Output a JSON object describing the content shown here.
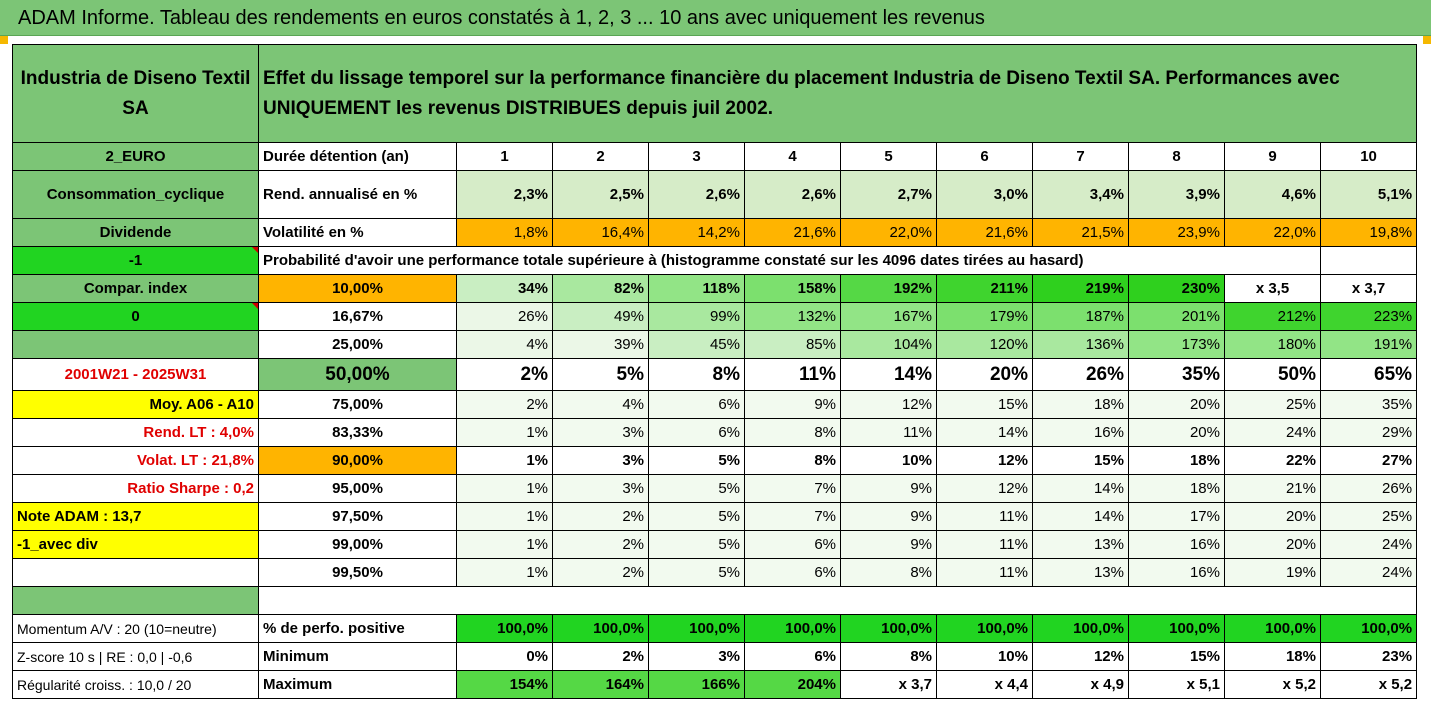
{
  "title": "ADAM Informe. Tableau des rendements en euros constatés à 1, 2, 3 ... 10 ans avec uniquement les revenus",
  "company": "Industria de Diseno Textil SA",
  "description": "Effet du lissage temporel sur la performance financière du placement Industria de Diseno Textil SA. Performances avec UNIQUEMENT les revenus DISTRIBUES depuis juil 2002.",
  "side": {
    "currency": "2_EURO",
    "sector": "Consommation_cyclique",
    "dividend": "Dividende",
    "minus_one": "-1",
    "compar_index": "Compar. index",
    "zero": "0",
    "period": "2001W21 - 2025W31",
    "moy": "Moy. A06 - A10",
    "rend_lt": "Rend. LT :   4,0%",
    "volat_lt": "Volat. LT :   21,8%",
    "sharpe": "Ratio Sharpe :   0,2",
    "note": "Note ADAM : 13,7",
    "avec_div": "-1_avec div",
    "momentum": "Momentum A/V : 20 (10=neutre)",
    "zscore": "Z-score 10 s  | RE : 0,0 | -0,6",
    "regularite": "Régularité croiss. : 10,0 / 20"
  },
  "labels": {
    "duree": "Durée détention (an)",
    "rend": "Rend. annualisé en %",
    "volat": "Volatilité en %",
    "proba": "Probabilité d'avoir une performance totale supérieure à (histogramme constaté sur les 4096 dates tirées au hasard)",
    "perfpos": "% de perfo. positive",
    "minimum": "Minimum",
    "maximum": "Maximum"
  },
  "years": [
    "1",
    "2",
    "3",
    "4",
    "5",
    "6",
    "7",
    "8",
    "9",
    "10"
  ],
  "rend": [
    "2,3%",
    "2,5%",
    "2,6%",
    "2,6%",
    "2,7%",
    "3,0%",
    "3,4%",
    "3,9%",
    "4,6%",
    "5,1%"
  ],
  "volat": [
    "1,8%",
    "16,4%",
    "14,2%",
    "21,6%",
    "22,0%",
    "21,6%",
    "21,5%",
    "23,9%",
    "22,0%",
    "19,8%"
  ],
  "proba_rows": [
    {
      "p": "10,00%",
      "v": [
        "34%",
        "82%",
        "118%",
        "158%",
        "192%",
        "211%",
        "219%",
        "230%",
        "x 3,5",
        "x 3,7"
      ]
    },
    {
      "p": "16,67%",
      "v": [
        "26%",
        "49%",
        "99%",
        "132%",
        "167%",
        "179%",
        "187%",
        "201%",
        "212%",
        "223%"
      ]
    },
    {
      "p": "25,00%",
      "v": [
        "4%",
        "39%",
        "45%",
        "85%",
        "104%",
        "120%",
        "136%",
        "173%",
        "180%",
        "191%"
      ]
    },
    {
      "p": "50,00%",
      "v": [
        "2%",
        "5%",
        "8%",
        "11%",
        "14%",
        "20%",
        "26%",
        "35%",
        "50%",
        "65%"
      ]
    },
    {
      "p": "75,00%",
      "v": [
        "2%",
        "4%",
        "6%",
        "9%",
        "12%",
        "15%",
        "18%",
        "20%",
        "25%",
        "35%"
      ]
    },
    {
      "p": "83,33%",
      "v": [
        "1%",
        "3%",
        "6%",
        "8%",
        "11%",
        "14%",
        "16%",
        "20%",
        "24%",
        "29%"
      ]
    },
    {
      "p": "90,00%",
      "v": [
        "1%",
        "3%",
        "5%",
        "8%",
        "10%",
        "12%",
        "15%",
        "18%",
        "22%",
        "27%"
      ]
    },
    {
      "p": "95,00%",
      "v": [
        "1%",
        "3%",
        "5%",
        "7%",
        "9%",
        "12%",
        "14%",
        "18%",
        "21%",
        "26%"
      ]
    },
    {
      "p": "97,50%",
      "v": [
        "1%",
        "2%",
        "5%",
        "7%",
        "9%",
        "11%",
        "14%",
        "17%",
        "20%",
        "25%"
      ]
    },
    {
      "p": "99,00%",
      "v": [
        "1%",
        "2%",
        "5%",
        "6%",
        "9%",
        "11%",
        "13%",
        "16%",
        "20%",
        "24%"
      ]
    },
    {
      "p": "99,50%",
      "v": [
        "1%",
        "2%",
        "5%",
        "6%",
        "8%",
        "11%",
        "13%",
        "16%",
        "19%",
        "24%"
      ]
    }
  ],
  "perfpos": [
    "100,0%",
    "100,0%",
    "100,0%",
    "100,0%",
    "100,0%",
    "100,0%",
    "100,0%",
    "100,0%",
    "100,0%",
    "100,0%"
  ],
  "minimum": [
    "0%",
    "2%",
    "3%",
    "6%",
    "8%",
    "10%",
    "12%",
    "15%",
    "18%",
    "23%"
  ],
  "maximum": [
    "154%",
    "164%",
    "166%",
    "204%",
    "x 3,7",
    "x 4,4",
    "x 4,9",
    "x 5,1",
    "x 5,2",
    "x 5,2"
  ]
}
